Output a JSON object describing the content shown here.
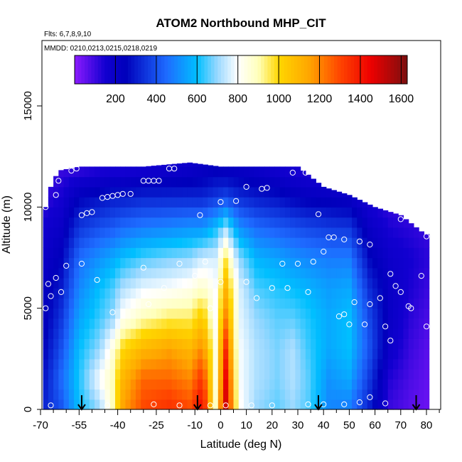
{
  "chart_data": {
    "type": "heatmap",
    "title": "ATOM2 Northbound MHP_CIT",
    "flights_note": "Flts: 6,7,8,9,10",
    "dates_note": "MMDD: 0210,0213,0215,0218,0219",
    "xlabel": "Latitude (deg N)",
    "ylabel": "Altitude (m)",
    "xlim": [
      -70,
      85
    ],
    "ylim": [
      0,
      17500
    ],
    "x_ticks": [
      -70,
      -55,
      -40,
      -25,
      -10,
      0,
      10,
      20,
      30,
      40,
      50,
      60,
      70,
      80
    ],
    "x_minor_ticks": [
      -65,
      -60,
      -50,
      -45,
      -35,
      -30,
      -20,
      -15,
      -5,
      5,
      15,
      25,
      35,
      45,
      55,
      65,
      75,
      85
    ],
    "y_ticks": [
      0,
      5000,
      10000,
      15000
    ],
    "colorbar": {
      "min": 0,
      "max": 1630,
      "ticks": [
        200,
        400,
        600,
        800,
        1000,
        1200,
        1400,
        1600
      ],
      "stops": [
        {
          "v": 0,
          "color": "#8c1aff"
        },
        {
          "v": 150,
          "color": "#1200d0"
        },
        {
          "v": 250,
          "color": "#0000bb"
        },
        {
          "v": 450,
          "color": "#1e6bff"
        },
        {
          "v": 600,
          "color": "#00bfff"
        },
        {
          "v": 700,
          "color": "#9ad8ff"
        },
        {
          "v": 800,
          "color": "#ffffff"
        },
        {
          "v": 900,
          "color": "#ffffbb"
        },
        {
          "v": 1000,
          "color": "#ffd700"
        },
        {
          "v": 1150,
          "color": "#ffa500"
        },
        {
          "v": 1300,
          "color": "#ff4500"
        },
        {
          "v": 1450,
          "color": "#ee0000"
        },
        {
          "v": 1630,
          "color": "#7a0f0f"
        }
      ]
    },
    "arrows_latitude": [
      -54,
      -9,
      38,
      76
    ],
    "coverage_upper_altitude": [
      {
        "lat": -70,
        "top": 9000
      },
      {
        "lat": -66,
        "top": 11000
      },
      {
        "lat": -63,
        "top": 11800
      },
      {
        "lat": -55,
        "top": 12000
      },
      {
        "lat": -30,
        "top": 12000
      },
      {
        "lat": -12,
        "top": 12200
      },
      {
        "lat": 0,
        "top": 12000
      },
      {
        "lat": 30,
        "top": 12000
      },
      {
        "lat": 33,
        "top": 11700
      },
      {
        "lat": 40,
        "top": 11000
      },
      {
        "lat": 50,
        "top": 10600
      },
      {
        "lat": 60,
        "top": 10000
      },
      {
        "lat": 70,
        "top": 9600
      },
      {
        "lat": 78,
        "top": 8800
      },
      {
        "lat": 81,
        "top": 8600
      }
    ],
    "observations": [
      {
        "lat": -68,
        "alt": 10000
      },
      {
        "lat": -64,
        "alt": 10600
      },
      {
        "lat": -63,
        "alt": 11300
      },
      {
        "lat": -58,
        "alt": 11800
      },
      {
        "lat": -56,
        "alt": 11900
      },
      {
        "lat": -54,
        "alt": 9600
      },
      {
        "lat": -52,
        "alt": 9700
      },
      {
        "lat": -50,
        "alt": 9750
      },
      {
        "lat": -46,
        "alt": 10450
      },
      {
        "lat": -44,
        "alt": 10500
      },
      {
        "lat": -42,
        "alt": 10550
      },
      {
        "lat": -40,
        "alt": 10600
      },
      {
        "lat": -38,
        "alt": 10650
      },
      {
        "lat": -35,
        "alt": 10650
      },
      {
        "lat": -30,
        "alt": 11300
      },
      {
        "lat": -28,
        "alt": 11300
      },
      {
        "lat": -26,
        "alt": 11300
      },
      {
        "lat": -24,
        "alt": 11300
      },
      {
        "lat": -20,
        "alt": 11900
      },
      {
        "lat": -18,
        "alt": 11900
      },
      {
        "lat": -8,
        "alt": 9600
      },
      {
        "lat": 0,
        "alt": 10250
      },
      {
        "lat": 6,
        "alt": 10300
      },
      {
        "lat": 10,
        "alt": 11000
      },
      {
        "lat": 16,
        "alt": 10900
      },
      {
        "lat": 18,
        "alt": 10950
      },
      {
        "lat": 28,
        "alt": 11700
      },
      {
        "lat": 33,
        "alt": 11700
      },
      {
        "lat": 38,
        "alt": 9650
      },
      {
        "lat": 40,
        "alt": 7800
      },
      {
        "lat": 42,
        "alt": 8500
      },
      {
        "lat": 44,
        "alt": 8500
      },
      {
        "lat": 48,
        "alt": 8400
      },
      {
        "lat": 54,
        "alt": 8300
      },
      {
        "lat": 58,
        "alt": 8150
      },
      {
        "lat": 70,
        "alt": 9400
      },
      {
        "lat": 80,
        "alt": 8550
      },
      {
        "lat": -67,
        "alt": 6200
      },
      {
        "lat": -66,
        "alt": 5600
      },
      {
        "lat": -64,
        "alt": 6500
      },
      {
        "lat": -62,
        "alt": 5800
      },
      {
        "lat": -60,
        "alt": 7100
      },
      {
        "lat": -54,
        "alt": 7200
      },
      {
        "lat": -48,
        "alt": 6400
      },
      {
        "lat": -42,
        "alt": 4800
      },
      {
        "lat": -30,
        "alt": 7000
      },
      {
        "lat": -28,
        "alt": 5200
      },
      {
        "lat": -22,
        "alt": 6000
      },
      {
        "lat": -16,
        "alt": 7200
      },
      {
        "lat": -10,
        "alt": 6600
      },
      {
        "lat": -6,
        "alt": 7300
      },
      {
        "lat": -4,
        "alt": 5000
      },
      {
        "lat": 0,
        "alt": 6300
      },
      {
        "lat": 10,
        "alt": 6300
      },
      {
        "lat": 14,
        "alt": 5500
      },
      {
        "lat": 20,
        "alt": 6000
      },
      {
        "lat": 24,
        "alt": 7200
      },
      {
        "lat": 26,
        "alt": 6000
      },
      {
        "lat": 30,
        "alt": 7200
      },
      {
        "lat": 34,
        "alt": 5800
      },
      {
        "lat": 36,
        "alt": 7300
      },
      {
        "lat": 46,
        "alt": 4600
      },
      {
        "lat": 48,
        "alt": 4700
      },
      {
        "lat": 50,
        "alt": 4200
      },
      {
        "lat": 52,
        "alt": 5300
      },
      {
        "lat": 56,
        "alt": 4200
      },
      {
        "lat": 58,
        "alt": 5200
      },
      {
        "lat": 62,
        "alt": 5500
      },
      {
        "lat": 64,
        "alt": 4100
      },
      {
        "lat": 66,
        "alt": 6700
      },
      {
        "lat": 68,
        "alt": 6100
      },
      {
        "lat": 70,
        "alt": 5800
      },
      {
        "lat": 73,
        "alt": 5100
      },
      {
        "lat": 74,
        "alt": 5000
      },
      {
        "lat": 78,
        "alt": 6600
      },
      {
        "lat": 80,
        "alt": 4100
      },
      {
        "lat": 66,
        "alt": 3400
      },
      {
        "lat": -68,
        "alt": 5000
      },
      {
        "lat": -66,
        "alt": 200
      },
      {
        "lat": -44,
        "alt": 200
      },
      {
        "lat": -26,
        "alt": 250
      },
      {
        "lat": -16,
        "alt": 200
      },
      {
        "lat": -4,
        "alt": 200
      },
      {
        "lat": 2,
        "alt": 200
      },
      {
        "lat": 12,
        "alt": 200
      },
      {
        "lat": 20,
        "alt": 200
      },
      {
        "lat": 34,
        "alt": 250
      },
      {
        "lat": 40,
        "alt": 250
      },
      {
        "lat": 48,
        "alt": 250
      },
      {
        "lat": 54,
        "alt": 350
      },
      {
        "lat": 58,
        "alt": 600
      },
      {
        "lat": 64,
        "alt": 300
      }
    ],
    "value_profiles": [
      {
        "lat": -70,
        "alt": [
          300,
          250,
          220,
          200,
          200,
          180,
          150,
          100,
          80
        ]
      },
      {
        "lat": -62,
        "alt": [
          400,
          450,
          400,
          350,
          300,
          250,
          200,
          150,
          100
        ]
      },
      {
        "lat": -55,
        "alt": [
          600,
          620,
          600,
          550,
          500,
          450,
          350,
          250,
          100
        ]
      },
      {
        "lat": -47,
        "alt": [
          700,
          800,
          700,
          640,
          600,
          520,
          400,
          280,
          120
        ]
      },
      {
        "lat": -42,
        "alt": [
          900,
          900,
          850,
          700,
          650,
          560,
          420,
          300,
          120
        ]
      },
      {
        "lat": -38,
        "alt": [
          1150,
          1100,
          1000,
          820,
          720,
          600,
          450,
          300,
          120
        ]
      },
      {
        "lat": -30,
        "alt": [
          1300,
          1250,
          1100,
          900,
          780,
          650,
          480,
          320,
          140
        ]
      },
      {
        "lat": -20,
        "alt": [
          1350,
          1250,
          1150,
          950,
          800,
          680,
          500,
          320,
          160
        ]
      },
      {
        "lat": -12,
        "alt": [
          1300,
          1200,
          1100,
          950,
          830,
          700,
          520,
          320,
          180
        ]
      },
      {
        "lat": -7,
        "alt": [
          1450,
          1350,
          1200,
          1050,
          880,
          750,
          520,
          320,
          200
        ]
      },
      {
        "lat": -2,
        "alt": [
          900,
          850,
          850,
          800,
          800,
          760,
          600,
          350,
          220
        ]
      },
      {
        "lat": 2,
        "alt": [
          1500,
          1450,
          1350,
          1200,
          1100,
          950,
          700,
          380,
          200
        ]
      },
      {
        "lat": 7,
        "alt": [
          820,
          800,
          800,
          780,
          770,
          700,
          520,
          330,
          200
        ]
      },
      {
        "lat": 14,
        "alt": [
          700,
          720,
          720,
          700,
          650,
          580,
          450,
          300,
          180
        ]
      },
      {
        "lat": 22,
        "alt": [
          660,
          680,
          680,
          660,
          620,
          550,
          420,
          280,
          150
        ]
      },
      {
        "lat": 28,
        "alt": [
          700,
          720,
          720,
          660,
          600,
          520,
          400,
          250,
          130
        ]
      },
      {
        "lat": 34,
        "alt": [
          650,
          660,
          640,
          620,
          580,
          500,
          380,
          230,
          120
        ]
      },
      {
        "lat": 42,
        "alt": [
          500,
          520,
          560,
          560,
          540,
          480,
          360,
          220,
          110
        ]
      },
      {
        "lat": 50,
        "alt": [
          480,
          560,
          600,
          600,
          560,
          480,
          350,
          200,
          100
        ]
      },
      {
        "lat": 58,
        "alt": [
          300,
          350,
          400,
          380,
          330,
          260,
          200,
          130,
          80
        ]
      },
      {
        "lat": 66,
        "alt": [
          100,
          130,
          180,
          200,
          200,
          180,
          140,
          100,
          60
        ]
      },
      {
        "lat": 74,
        "alt": [
          60,
          80,
          100,
          120,
          140,
          150,
          120,
          90,
          50
        ]
      },
      {
        "lat": 81,
        "alt": [
          40,
          50,
          60,
          80,
          100,
          120,
          100,
          80,
          40
        ]
      }
    ],
    "profile_altitudes": [
      0,
      1500,
      3000,
      4500,
      6000,
      7500,
      9000,
      10500,
      12000
    ]
  }
}
